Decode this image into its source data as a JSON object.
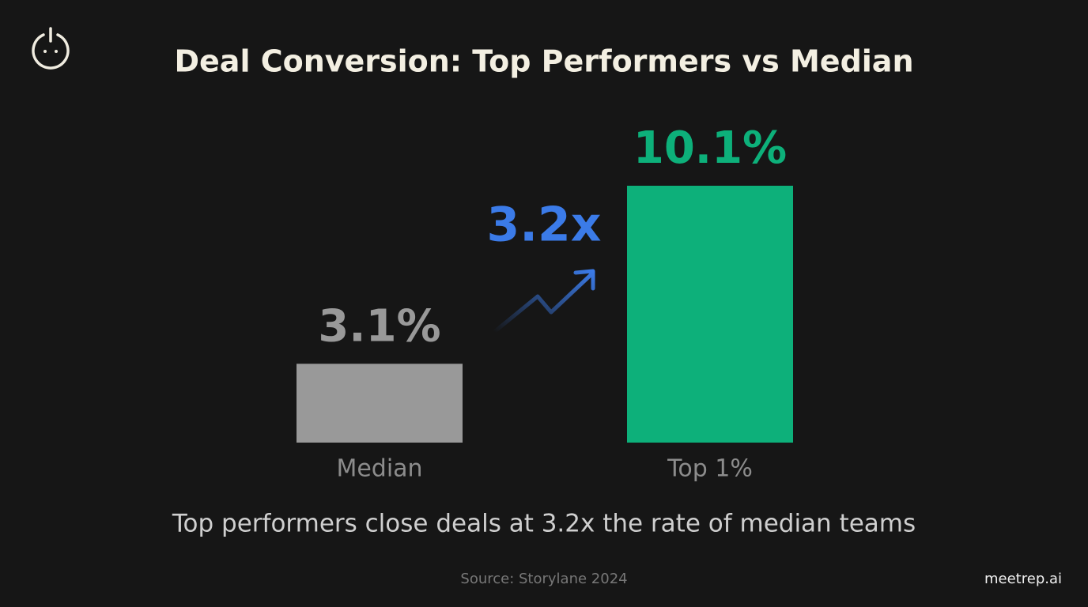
{
  "chart_data": {
    "type": "bar",
    "title": "Deal Conversion: Top Performers vs Median",
    "categories": [
      "Median",
      "Top 1%"
    ],
    "values": [
      3.1,
      10.1
    ],
    "value_labels": [
      "3.1%",
      "10.1%"
    ],
    "colors": [
      "#999999",
      "#0db07a"
    ],
    "annotation": "3.2x",
    "caption": "Top performers close deals at 3.2x the rate of median teams",
    "source": "Source: Storylane 2024"
  },
  "brand": "meetrep.ai"
}
